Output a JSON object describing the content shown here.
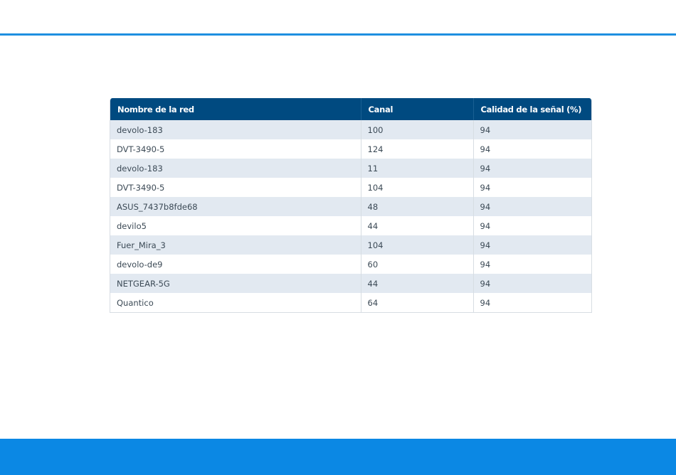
{
  "table": {
    "headers": [
      "Nombre de la red",
      "Canal",
      "Calidad de la señal (%)"
    ],
    "rows": [
      [
        "devolo-183",
        "100",
        "94"
      ],
      [
        "DVT-3490-5",
        "124",
        "94"
      ],
      [
        "devolo-183",
        "11",
        "94"
      ],
      [
        "DVT-3490-5",
        "104",
        "94"
      ],
      [
        "ASUS_7437b8fde68",
        "48",
        "94"
      ],
      [
        "devilo5",
        "44",
        "94"
      ],
      [
        "Fuer_Mira_3",
        "104",
        "94"
      ],
      [
        "devolo-de9",
        "60",
        "94"
      ],
      [
        "NETGEAR-5G",
        "44",
        "94"
      ],
      [
        "Quantico",
        "64",
        "94"
      ]
    ]
  },
  "colors": {
    "header_bg": "#004a80",
    "row_stripe": "#e2e9f1",
    "top_rule": "#1e8fe0",
    "bottom_bar": "#0b88e4"
  }
}
